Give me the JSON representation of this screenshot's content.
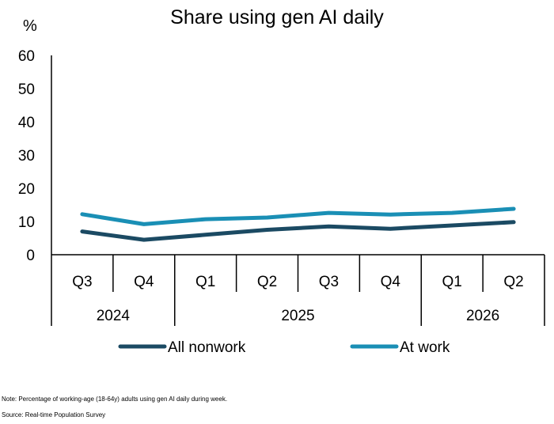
{
  "chart_data": {
    "type": "line",
    "title": "Share using gen AI daily",
    "ylabel": "%",
    "ylim": [
      0,
      60
    ],
    "yticks": [
      0,
      10,
      20,
      30,
      40,
      50,
      60
    ],
    "categories": [
      "Q3",
      "Q4",
      "Q1",
      "Q2",
      "Q3",
      "Q4",
      "Q1",
      "Q2"
    ],
    "year_groups": [
      {
        "label": "2024",
        "span": 2
      },
      {
        "label": "2025",
        "span": 4
      },
      {
        "label": "2026",
        "span": 2
      }
    ],
    "series": [
      {
        "name": "All nonwork",
        "color": "#1b4a63",
        "values": [
          7.0,
          4.5,
          6.0,
          7.5,
          8.5,
          7.8,
          8.8,
          9.8
        ]
      },
      {
        "name": "At work",
        "color": "#1a8fb5",
        "values": [
          12.2,
          9.2,
          10.7,
          11.2,
          12.6,
          12.1,
          12.6,
          13.8
        ]
      }
    ],
    "grid": false,
    "legend_position": "bottom"
  },
  "footnotes": {
    "note": "Note: Percentage of working-age (18-64y) adults using gen AI daily during week.",
    "source": "Source: Real-time Population Survey"
  }
}
